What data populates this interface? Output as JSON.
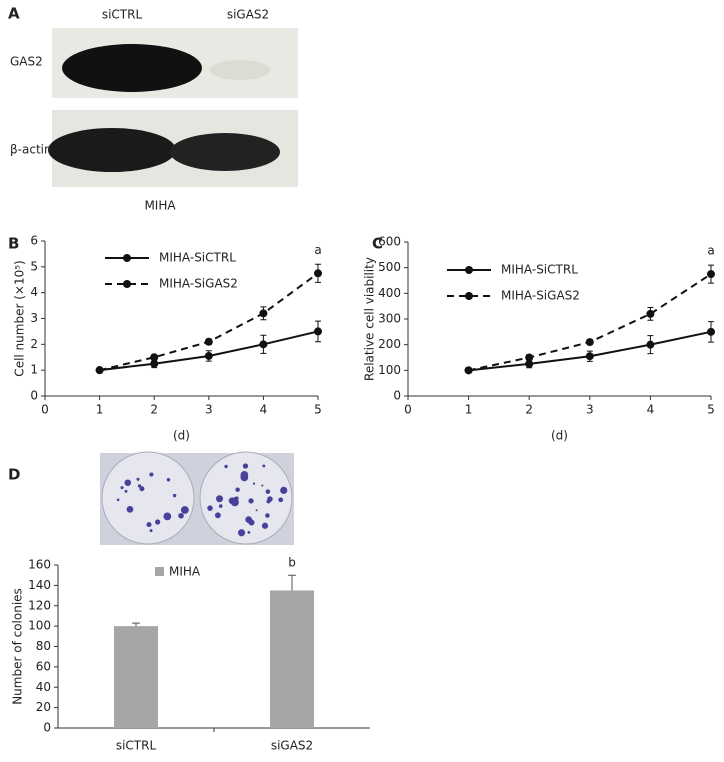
{
  "blot": {
    "panel_label": "A",
    "lanes": [
      "siCTRL",
      "siGAS2"
    ],
    "rows": [
      "GAS2",
      "β-actin"
    ],
    "cell_line": "MIHA"
  },
  "chart_data": [
    {
      "type": "line",
      "panel_label": "B",
      "y_label": "Cell number (×10⁵)",
      "x_label": "(d)",
      "annotation": "a",
      "x": [
        1,
        2,
        3,
        4,
        5
      ],
      "xlim": [
        0,
        5
      ],
      "xticks": [
        0,
        1,
        2,
        3,
        4,
        5
      ],
      "ylim": [
        0,
        6
      ],
      "yticks": [
        0,
        1,
        2,
        3,
        4,
        5,
        6
      ],
      "series": [
        {
          "name": "MIHA-SiCTRL",
          "color": "#111111",
          "line_style": "solid",
          "values": [
            1,
            1.25,
            1.55,
            2,
            2.5
          ],
          "errors": [
            0.05,
            0.15,
            0.2,
            0.35,
            0.4
          ]
        },
        {
          "name": "MIHA-SiGAS2",
          "color": "#111111",
          "line_style": "dashed",
          "values": [
            1,
            1.5,
            2.1,
            3.2,
            4.75
          ],
          "errors": [
            0.05,
            0.08,
            0.1,
            0.25,
            0.35
          ]
        }
      ]
    },
    {
      "type": "line",
      "panel_label": "C",
      "y_label": "Relative cell viability",
      "x_label": "(d)",
      "annotation": "a",
      "x": [
        1,
        2,
        3,
        4,
        5
      ],
      "xlim": [
        0,
        5
      ],
      "xticks": [
        0,
        1,
        2,
        3,
        4,
        5
      ],
      "ylim": [
        0,
        600
      ],
      "yticks": [
        0,
        100,
        200,
        300,
        400,
        500,
        600
      ],
      "series": [
        {
          "name": "MIHA-SiCTRL",
          "color": "#111111",
          "line_style": "solid",
          "values": [
            100,
            125,
            155,
            200,
            250
          ],
          "errors": [
            5,
            15,
            20,
            35,
            40
          ]
        },
        {
          "name": "MIHA-SiGAS2",
          "color": "#111111",
          "line_style": "dashed",
          "values": [
            100,
            150,
            210,
            320,
            475
          ],
          "errors": [
            5,
            8,
            10,
            25,
            35
          ]
        }
      ]
    },
    {
      "type": "bar",
      "panel_label": "D",
      "y_label": "Number of colonies",
      "annotation": "b",
      "categories": [
        "siCTRL",
        "siGAS2"
      ],
      "ylim": [
        0,
        160
      ],
      "yticks": [
        0,
        20,
        40,
        60,
        80,
        100,
        120,
        140,
        160
      ],
      "series": [
        {
          "name": "MIHA",
          "color": "#a6a6a6",
          "values": [
            100,
            135
          ],
          "errors": [
            3,
            15
          ]
        }
      ]
    }
  ]
}
